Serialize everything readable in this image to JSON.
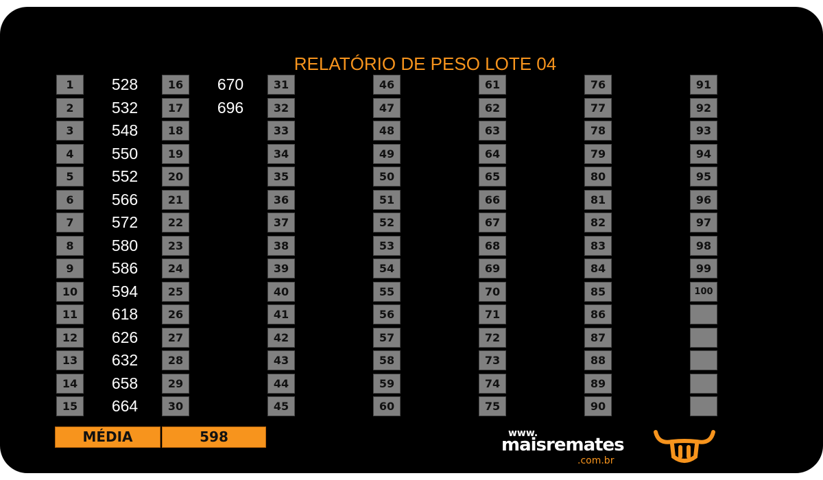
{
  "title": "RELATÓRIO DE PESO LOTE 04",
  "columns": [
    [
      {
        "n": 1,
        "weight": 528
      },
      {
        "n": 2,
        "weight": 532
      },
      {
        "n": 3,
        "weight": 548
      },
      {
        "n": 4,
        "weight": 550
      },
      {
        "n": 5,
        "weight": 552
      },
      {
        "n": 6,
        "weight": 566
      },
      {
        "n": 7,
        "weight": 572
      },
      {
        "n": 8,
        "weight": 580
      },
      {
        "n": 9,
        "weight": 586
      },
      {
        "n": 10,
        "weight": 594
      },
      {
        "n": 11,
        "weight": 618
      },
      {
        "n": 12,
        "weight": 626
      },
      {
        "n": 13,
        "weight": 632
      },
      {
        "n": 14,
        "weight": 658
      },
      {
        "n": 15,
        "weight": 664
      }
    ],
    [
      {
        "n": 16,
        "weight": 670
      },
      {
        "n": 17,
        "weight": 696
      },
      {
        "n": 18
      },
      {
        "n": 19
      },
      {
        "n": 20
      },
      {
        "n": 21
      },
      {
        "n": 22
      },
      {
        "n": 23
      },
      {
        "n": 24
      },
      {
        "n": 25
      },
      {
        "n": 26
      },
      {
        "n": 27
      },
      {
        "n": 28
      },
      {
        "n": 29
      },
      {
        "n": 30
      }
    ],
    [
      {
        "n": 31
      },
      {
        "n": 32
      },
      {
        "n": 33
      },
      {
        "n": 34
      },
      {
        "n": 35
      },
      {
        "n": 36
      },
      {
        "n": 37
      },
      {
        "n": 38
      },
      {
        "n": 39
      },
      {
        "n": 40
      },
      {
        "n": 41
      },
      {
        "n": 42
      },
      {
        "n": 43
      },
      {
        "n": 44
      },
      {
        "n": 45
      }
    ],
    [
      {
        "n": 46
      },
      {
        "n": 47
      },
      {
        "n": 48
      },
      {
        "n": 49
      },
      {
        "n": 50
      },
      {
        "n": 51
      },
      {
        "n": 52
      },
      {
        "n": 53
      },
      {
        "n": 54
      },
      {
        "n": 55
      },
      {
        "n": 56
      },
      {
        "n": 57
      },
      {
        "n": 58
      },
      {
        "n": 59
      },
      {
        "n": 60
      }
    ],
    [
      {
        "n": 61
      },
      {
        "n": 62
      },
      {
        "n": 63
      },
      {
        "n": 64
      },
      {
        "n": 65
      },
      {
        "n": 66
      },
      {
        "n": 67
      },
      {
        "n": 68
      },
      {
        "n": 69
      },
      {
        "n": 70
      },
      {
        "n": 71
      },
      {
        "n": 72
      },
      {
        "n": 73
      },
      {
        "n": 74
      },
      {
        "n": 75
      }
    ],
    [
      {
        "n": 76
      },
      {
        "n": 77
      },
      {
        "n": 78
      },
      {
        "n": 79
      },
      {
        "n": 80
      },
      {
        "n": 81
      },
      {
        "n": 82
      },
      {
        "n": 83
      },
      {
        "n": 84
      },
      {
        "n": 85
      },
      {
        "n": 86
      },
      {
        "n": 87
      },
      {
        "n": 88
      },
      {
        "n": 89
      },
      {
        "n": 90
      }
    ],
    [
      {
        "n": 91
      },
      {
        "n": 92
      },
      {
        "n": 93
      },
      {
        "n": 94
      },
      {
        "n": 95
      },
      {
        "n": 96
      },
      {
        "n": 97
      },
      {
        "n": 98
      },
      {
        "n": 99
      },
      {
        "n": 100
      }
    ]
  ],
  "footer": {
    "label": "MÉDIA",
    "value": 598
  },
  "logo": {
    "prefix": "www.",
    "name": "maisremates",
    "domain": ".com.br"
  }
}
